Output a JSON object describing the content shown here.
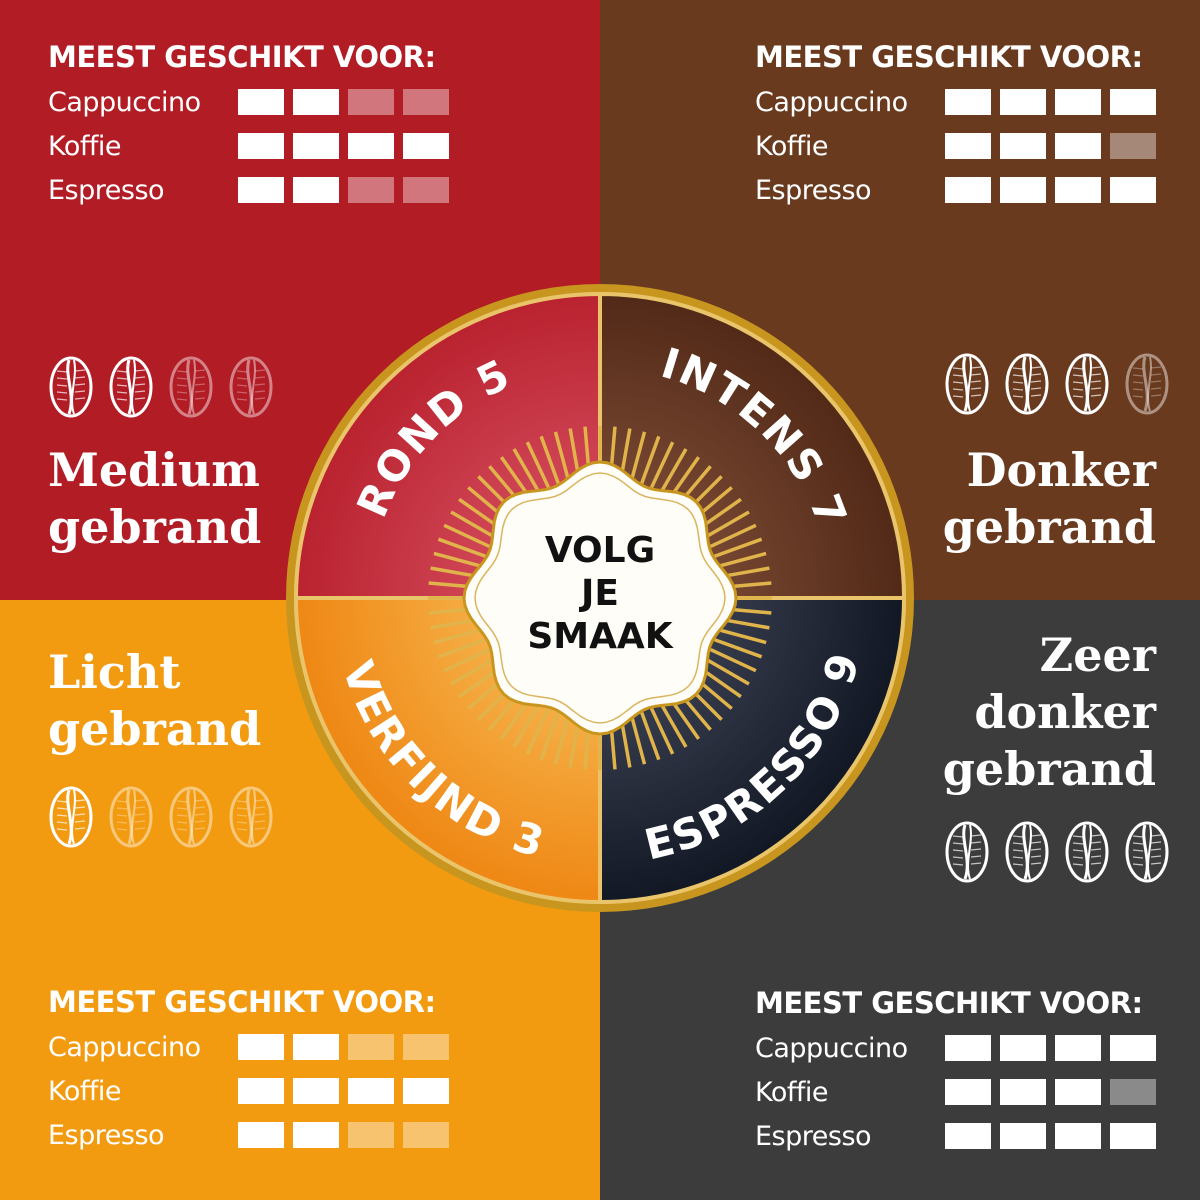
{
  "suit_header": "MEEST GESCHIKT VOOR:",
  "quadrants": {
    "red": {
      "color": "#b11c25",
      "ratings": [
        {
          "label": "Cappuccino",
          "value": 2,
          "max": 4
        },
        {
          "label": "Koffie",
          "value": 4,
          "max": 4
        },
        {
          "label": "Espresso",
          "value": 2,
          "max": 4
        }
      ],
      "roast": [
        "Medium",
        "gebrand"
      ],
      "beans": {
        "filled": 2,
        "total": 4
      },
      "wheel_label": "ROND 5"
    },
    "brown": {
      "color": "#6a3a1e",
      "ratings": [
        {
          "label": "Cappuccino",
          "value": 4,
          "max": 4
        },
        {
          "label": "Koffie",
          "value": 3,
          "max": 4
        },
        {
          "label": "Espresso",
          "value": 4,
          "max": 4
        }
      ],
      "roast": [
        "Donker",
        "gebrand"
      ],
      "beans": {
        "filled": 3,
        "total": 4
      },
      "wheel_label": "INTENS 7"
    },
    "orange": {
      "color": "#f39b10",
      "ratings": [
        {
          "label": "Cappuccino",
          "value": 2,
          "max": 4
        },
        {
          "label": "Koffie",
          "value": 4,
          "max": 4
        },
        {
          "label": "Espresso",
          "value": 2,
          "max": 4
        }
      ],
      "roast": [
        "Licht",
        "gebrand"
      ],
      "beans": {
        "filled": 1,
        "total": 4
      },
      "wheel_label": "VERFIJND 3"
    },
    "grey": {
      "color": "#3d3c3d",
      "ratings": [
        {
          "label": "Cappuccino",
          "value": 4,
          "max": 4
        },
        {
          "label": "Koffie",
          "value": 3,
          "max": 4
        },
        {
          "label": "Espresso",
          "value": 4,
          "max": 4
        }
      ],
      "roast": [
        "Zeer",
        "donker",
        "gebrand"
      ],
      "beans": {
        "filled": 4,
        "total": 4
      },
      "wheel_label": "ESPRESSO 9"
    }
  },
  "center": {
    "lines": [
      "VOLG",
      "JE",
      "SMAAK"
    ]
  },
  "colors": {
    "gold": "#c8961e",
    "wheel_red": "#c2283a",
    "wheel_brown": "#5a2d18",
    "wheel_orange": "#ee8a14",
    "wheel_dark": "#101621"
  }
}
